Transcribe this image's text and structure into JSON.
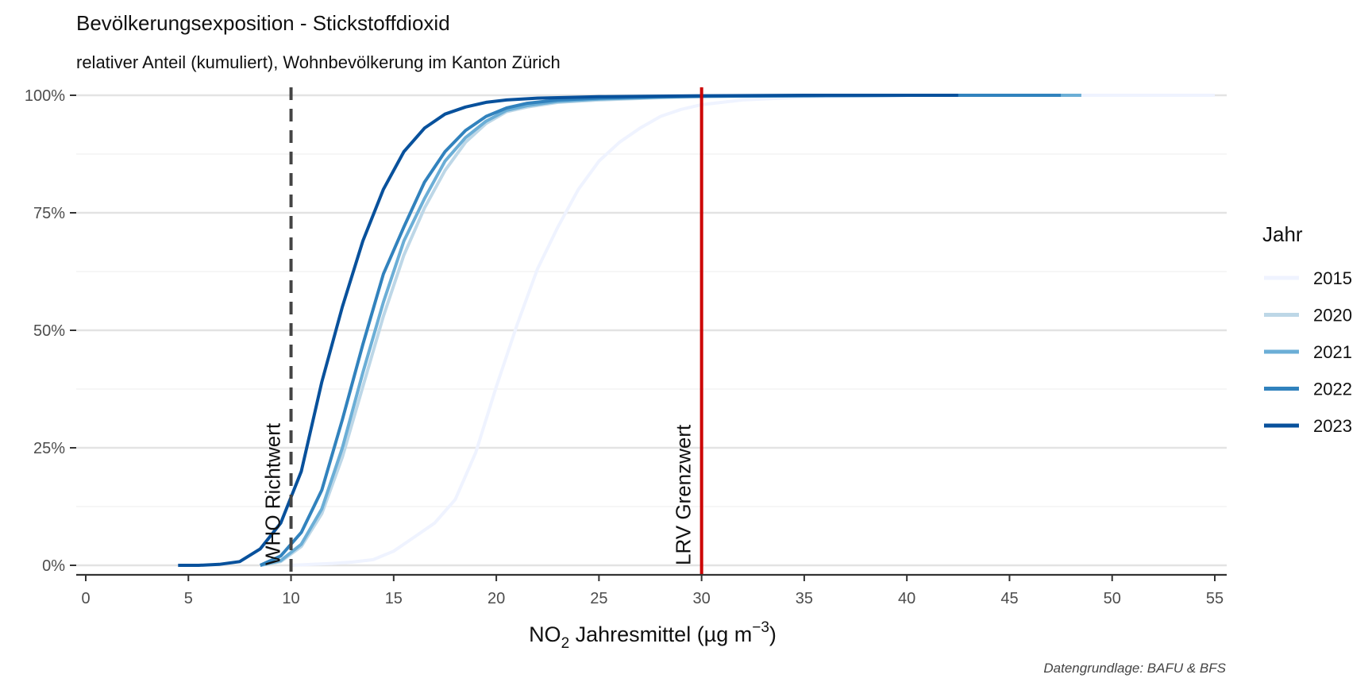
{
  "header": {
    "title": "Bevölkerungsexposition - Stickstoffdioxid",
    "subtitle": "relativer Anteil (kumuliert), Wohnbevölkerung im Kanton Zürich"
  },
  "caption": "Datengrundlage: BAFU & BFS",
  "chart_data": {
    "type": "line",
    "title": "Bevölkerungsexposition - Stickstoffdioxid",
    "subtitle": "relativer Anteil (kumuliert), Wohnbevölkerung im Kanton Zürich",
    "xlabel": {
      "prefix": "NO",
      "sub": "2",
      "middle": " Jahresmittel (µg m",
      "sup": "−3",
      "suffix": ")"
    },
    "ylabel": "",
    "xlim": [
      0,
      55
    ],
    "ylim": [
      0,
      1
    ],
    "x_ticks": [
      0,
      5,
      10,
      15,
      20,
      25,
      30,
      35,
      40,
      45,
      50,
      55
    ],
    "y_ticks": [
      0,
      0.25,
      0.5,
      0.75,
      1.0
    ],
    "y_tick_labels": [
      "0%",
      "25%",
      "50%",
      "75%",
      "100%"
    ],
    "legend_title": "Jahr",
    "legend_position": "right",
    "grid": true,
    "series": [
      {
        "name": "2015",
        "color": "#eff3ff",
        "x": [
          10,
          11,
          12,
          13,
          14,
          15,
          16,
          17,
          18,
          19,
          20,
          21,
          22,
          23,
          24,
          25,
          26,
          27,
          28,
          29,
          30,
          32,
          35,
          40,
          45,
          50,
          55
        ],
        "y": [
          0,
          0.002,
          0.004,
          0.007,
          0.012,
          0.03,
          0.06,
          0.09,
          0.14,
          0.24,
          0.38,
          0.51,
          0.63,
          0.72,
          0.8,
          0.86,
          0.9,
          0.93,
          0.955,
          0.97,
          0.98,
          0.99,
          0.996,
          0.999,
          1,
          1,
          1
        ]
      },
      {
        "name": "2020",
        "color": "#bdd7e7",
        "x": [
          8.5,
          9.5,
          10.5,
          11.5,
          12.5,
          13.5,
          14.5,
          15.5,
          16.5,
          17.5,
          18.5,
          19.5,
          20.5,
          21.5,
          23,
          25,
          28,
          30,
          35,
          40,
          48.5
        ],
        "y": [
          0,
          0.008,
          0.04,
          0.11,
          0.23,
          0.38,
          0.53,
          0.66,
          0.76,
          0.84,
          0.9,
          0.94,
          0.965,
          0.975,
          0.985,
          0.99,
          0.995,
          0.997,
          0.999,
          1,
          1
        ]
      },
      {
        "name": "2021",
        "color": "#6baed6",
        "x": [
          8.5,
          9.5,
          10.5,
          11.5,
          12.5,
          13.5,
          14.5,
          15.5,
          16.5,
          17.5,
          18.5,
          19.5,
          20.5,
          21.5,
          23,
          25,
          28,
          30,
          35,
          40,
          48.5
        ],
        "y": [
          0,
          0.01,
          0.045,
          0.12,
          0.25,
          0.41,
          0.56,
          0.69,
          0.78,
          0.86,
          0.91,
          0.945,
          0.968,
          0.978,
          0.987,
          0.992,
          0.996,
          0.998,
          0.999,
          1,
          1
        ]
      },
      {
        "name": "2022",
        "color": "#3182bd",
        "x": [
          8.5,
          9.5,
          10.5,
          11.5,
          12.5,
          13.5,
          14.5,
          15.5,
          16.5,
          17.5,
          18.5,
          19.5,
          20.5,
          21.5,
          23,
          25,
          28,
          30,
          35,
          40,
          47.5
        ],
        "y": [
          0,
          0.02,
          0.07,
          0.16,
          0.31,
          0.47,
          0.62,
          0.72,
          0.815,
          0.88,
          0.925,
          0.955,
          0.973,
          0.983,
          0.99,
          0.994,
          0.997,
          0.998,
          0.999,
          1,
          1
        ]
      },
      {
        "name": "2023",
        "color": "#08519c",
        "x": [
          4.5,
          5.5,
          6.5,
          7.5,
          8.5,
          9.5,
          10.5,
          11.5,
          12.5,
          13.5,
          14.5,
          15.5,
          16.5,
          17.5,
          18.5,
          19.5,
          20.5,
          22,
          25,
          30,
          35,
          42.5
        ],
        "y": [
          0,
          0,
          0.002,
          0.008,
          0.035,
          0.09,
          0.2,
          0.39,
          0.55,
          0.69,
          0.8,
          0.88,
          0.93,
          0.96,
          0.975,
          0.985,
          0.99,
          0.994,
          0.997,
          0.999,
          1,
          1
        ]
      }
    ],
    "reference_lines": [
      {
        "x": 10,
        "label": "WHO Richtwert",
        "style": "dashed",
        "color": "#444444"
      },
      {
        "x": 30,
        "label": "LRV Grenzwert",
        "style": "solid",
        "color": "#cc0000"
      }
    ]
  }
}
